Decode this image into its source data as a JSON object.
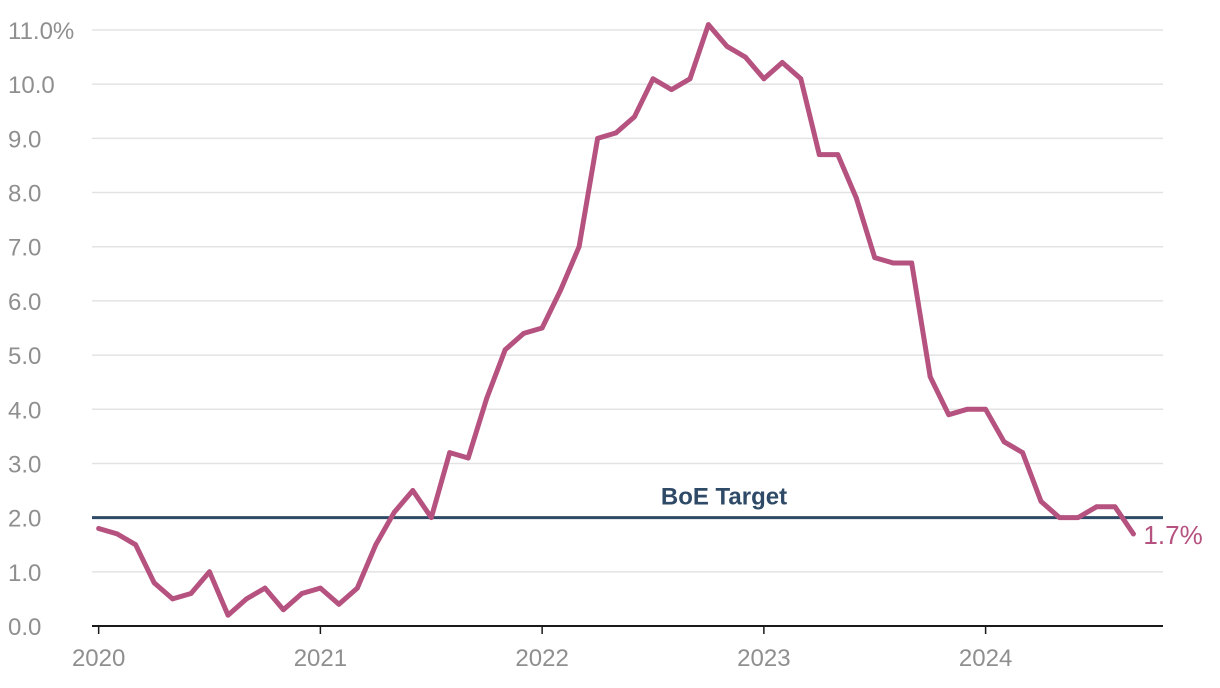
{
  "chart_data": {
    "type": "line",
    "title": "",
    "xlabel": "",
    "ylabel": "",
    "ylim": [
      0,
      11
    ],
    "yticks": [
      "0.0",
      "1.0",
      "2.0",
      "3.0",
      "4.0",
      "5.0",
      "6.0",
      "7.0",
      "8.0",
      "9.0",
      "10.0",
      "11.0%"
    ],
    "xticks": [
      "2020",
      "2021",
      "2022",
      "2023",
      "2024"
    ],
    "grid": true,
    "legend": "none",
    "series": [
      {
        "color": "#b5527f",
        "x": [
          "2020-01",
          "2020-02",
          "2020-03",
          "2020-04",
          "2020-05",
          "2020-06",
          "2020-07",
          "2020-08",
          "2020-09",
          "2020-10",
          "2020-11",
          "2020-12",
          "2021-01",
          "2021-02",
          "2021-03",
          "2021-04",
          "2021-05",
          "2021-06",
          "2021-07",
          "2021-08",
          "2021-09",
          "2021-10",
          "2021-11",
          "2021-12",
          "2022-01",
          "2022-02",
          "2022-03",
          "2022-04",
          "2022-05",
          "2022-06",
          "2022-07",
          "2022-08",
          "2022-09",
          "2022-10",
          "2022-11",
          "2022-12",
          "2023-01",
          "2023-02",
          "2023-03",
          "2023-04",
          "2023-05",
          "2023-06",
          "2023-07",
          "2023-08",
          "2023-09",
          "2023-10",
          "2023-11",
          "2023-12",
          "2024-01",
          "2024-02",
          "2024-03",
          "2024-04",
          "2024-05",
          "2024-06",
          "2024-07",
          "2024-08",
          "2024-09"
        ],
        "values": [
          1.8,
          1.7,
          1.5,
          0.8,
          0.5,
          0.6,
          1.0,
          0.2,
          0.5,
          0.7,
          0.3,
          0.6,
          0.7,
          0.4,
          0.7,
          1.5,
          2.1,
          2.5,
          2.0,
          3.2,
          3.1,
          4.2,
          5.1,
          5.4,
          5.5,
          6.2,
          7.0,
          9.0,
          9.1,
          9.4,
          10.1,
          9.9,
          10.1,
          11.1,
          10.7,
          10.5,
          10.1,
          10.4,
          10.1,
          8.7,
          8.7,
          7.9,
          6.8,
          6.7,
          6.7,
          4.6,
          3.9,
          4.0,
          4.0,
          3.4,
          3.2,
          2.3,
          2.0,
          2.0,
          2.2,
          2.2,
          1.7
        ]
      }
    ],
    "target_line": {
      "value": 2.0,
      "label": "BoE Target",
      "color": "#2f4a66"
    },
    "end_label": {
      "text": "1.7%",
      "color": "#b5527f"
    }
  }
}
